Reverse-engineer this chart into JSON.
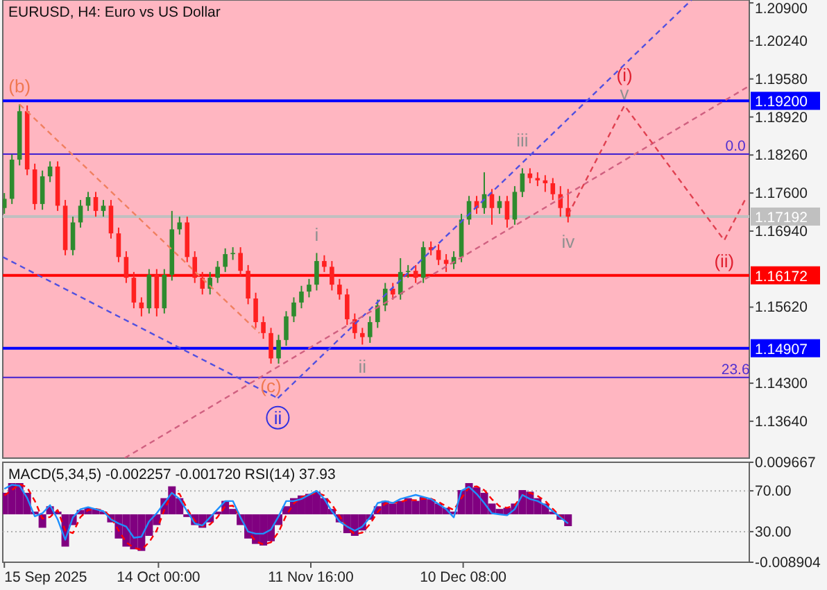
{
  "chart_data": [
    {
      "type": "candlestick",
      "title": "EURUSD, H4:  Euro vs US Dollar",
      "tick_labels": "y",
      "xlim": [
        "2025-09-14T17:00",
        "2026-02-02T04:00"
      ],
      "ylim": [
        1.13,
        1.2095
      ],
      "yticks": [
        {
          "value": 1.209,
          "label": "1.20900"
        },
        {
          "value": 1.2024,
          "label": "1.20240"
        },
        {
          "value": 1.1958,
          "label": "1.19580"
        },
        {
          "value": 1.1892,
          "label": "1.18920"
        },
        {
          "value": 1.1826,
          "label": "1.18260"
        },
        {
          "value": 1.176,
          "label": "1.17600"
        },
        {
          "value": 1.1694,
          "label": "1.16940"
        },
        {
          "value": 1.1562,
          "label": "1.15620"
        },
        {
          "value": 1.143,
          "label": "1.14300"
        },
        {
          "value": 1.1364,
          "label": "1.13640"
        }
      ],
      "x": [
        "2025-09-15T00:00",
        "2025-09-16T10:24",
        "2025-09-17T20:48",
        "2025-09-19T07:12",
        "2025-09-20T17:36",
        "2025-09-22T04:00",
        "2025-09-23T14:24",
        "2025-09-25T00:48",
        "2025-09-26T11:12",
        "2025-09-27T21:36",
        "2025-09-29T08:00",
        "2025-09-30T18:24",
        "2025-10-02T04:48",
        "2025-10-03T15:12",
        "2025-10-05T01:36",
        "2025-10-06T12:00",
        "2025-10-07T22:24",
        "2025-10-09T08:48",
        "2025-10-10T19:12",
        "2025-10-12T05:36",
        "2025-10-13T16:00",
        "2025-10-15T02:24",
        "2025-10-16T12:48",
        "2025-10-17T23:12",
        "2025-10-19T09:36",
        "2025-10-20T20:00",
        "2025-10-22T06:24",
        "2025-10-23T16:48",
        "2025-10-25T03:12",
        "2025-10-26T13:36",
        "2025-10-28T00:00",
        "2025-10-29T10:24",
        "2025-10-30T20:48",
        "2025-11-01T07:12",
        "2025-11-02T17:36",
        "2025-11-04T04:00",
        "2025-11-05T14:24",
        "2025-11-07T00:48",
        "2025-11-08T11:12",
        "2025-11-09T21:36",
        "2025-11-11T08:00",
        "2025-11-12T18:24",
        "2025-11-14T04:48",
        "2025-11-15T15:12",
        "2025-11-17T01:36",
        "2025-11-18T12:00",
        "2025-11-19T22:24",
        "2025-11-21T08:48",
        "2025-11-22T19:12",
        "2025-11-24T05:36",
        "2025-11-25T16:00",
        "2025-11-27T02:24",
        "2025-11-28T12:48",
        "2025-11-29T23:12",
        "2025-12-01T09:36",
        "2025-12-02T20:00",
        "2025-12-04T06:24",
        "2025-12-05T16:48",
        "2025-12-07T03:12",
        "2025-12-08T13:36",
        "2025-12-10T00:00",
        "2025-12-11T10:24",
        "2025-12-12T20:48",
        "2025-12-14T07:12",
        "2025-12-15T17:36",
        "2025-12-17T04:00",
        "2025-12-18T14:24",
        "2025-12-20T00:48",
        "2025-12-21T11:12",
        "2025-12-22T21:36",
        "2025-12-24T08:00",
        "2025-12-25T18:24",
        "2025-12-27T04:48",
        "2025-12-28T15:12",
        "2025-12-30T01:36"
      ],
      "ohlc": [
        [
          1.1734,
          1.176,
          1.1724,
          1.175
        ],
        [
          1.175,
          1.1827,
          1.1741,
          1.1818
        ],
        [
          1.1818,
          1.1914,
          1.1808,
          1.1902
        ],
        [
          1.1902,
          1.1912,
          1.1791,
          1.1801
        ],
        [
          1.1801,
          1.1811,
          1.1731,
          1.1741
        ],
        [
          1.1741,
          1.1799,
          1.1731,
          1.1789
        ],
        [
          1.1789,
          1.1815,
          1.1779,
          1.1806
        ],
        [
          1.1806,
          1.1815,
          1.1729,
          1.1738
        ],
        [
          1.1738,
          1.1748,
          1.1652,
          1.1661
        ],
        [
          1.1661,
          1.1719,
          1.1652,
          1.1709
        ],
        [
          1.1709,
          1.1748,
          1.17,
          1.1738
        ],
        [
          1.1738,
          1.1762,
          1.1729,
          1.1753
        ],
        [
          1.1753,
          1.1762,
          1.1719,
          1.1729
        ],
        [
          1.1729,
          1.1748,
          1.1719,
          1.1738
        ],
        [
          1.1738,
          1.1748,
          1.1681,
          1.169
        ],
        [
          1.169,
          1.17,
          1.164,
          1.1649
        ],
        [
          1.1649,
          1.1659,
          1.1604,
          1.1613
        ],
        [
          1.1613,
          1.1623,
          1.156,
          1.157
        ],
        [
          1.157,
          1.1579,
          1.1546,
          1.156
        ],
        [
          1.156,
          1.1628,
          1.1551,
          1.1618
        ],
        [
          1.1618,
          1.1628,
          1.1546,
          1.156
        ],
        [
          1.156,
          1.1628,
          1.1551,
          1.1618
        ],
        [
          1.1618,
          1.1729,
          1.1608,
          1.1697
        ],
        [
          1.1697,
          1.1719,
          1.1688,
          1.1709
        ],
        [
          1.1709,
          1.1719,
          1.164,
          1.1649
        ],
        [
          1.1649,
          1.1659,
          1.1604,
          1.1613
        ],
        [
          1.1613,
          1.1623,
          1.1584,
          1.1594
        ],
        [
          1.1594,
          1.1623,
          1.1584,
          1.1613
        ],
        [
          1.1613,
          1.1642,
          1.1604,
          1.1632
        ],
        [
          1.1632,
          1.1664,
          1.1623,
          1.1654
        ],
        [
          1.1654,
          1.1666,
          1.1644,
          1.1656
        ],
        [
          1.1656,
          1.1666,
          1.1616,
          1.1625
        ],
        [
          1.1625,
          1.1635,
          1.1567,
          1.1577
        ],
        [
          1.1577,
          1.1587,
          1.1526,
          1.1536
        ],
        [
          1.1536,
          1.1546,
          1.1507,
          1.1517
        ],
        [
          1.1517,
          1.1526,
          1.1464,
          1.1473
        ],
        [
          1.1473,
          1.1514,
          1.1464,
          1.1505
        ],
        [
          1.1505,
          1.1555,
          1.1495,
          1.1546
        ],
        [
          1.1546,
          1.1579,
          1.1536,
          1.157
        ],
        [
          1.157,
          1.1599,
          1.156,
          1.1589
        ],
        [
          1.1589,
          1.1611,
          1.1579,
          1.1601
        ],
        [
          1.1601,
          1.1656,
          1.1591,
          1.1642
        ],
        [
          1.1642,
          1.1652,
          1.1623,
          1.1632
        ],
        [
          1.1632,
          1.1642,
          1.1591,
          1.1601
        ],
        [
          1.1601,
          1.1611,
          1.1575,
          1.1584
        ],
        [
          1.1584,
          1.1594,
          1.1531,
          1.1541
        ],
        [
          1.1541,
          1.1551,
          1.1507,
          1.1517
        ],
        [
          1.1517,
          1.1526,
          1.1497,
          1.151
        ],
        [
          1.151,
          1.1546,
          1.15,
          1.1536
        ],
        [
          1.1536,
          1.1575,
          1.1526,
          1.1565
        ],
        [
          1.1565,
          1.1604,
          1.1555,
          1.1594
        ],
        [
          1.1594,
          1.1604,
          1.1575,
          1.1584
        ],
        [
          1.1584,
          1.1647,
          1.1575,
          1.1623
        ],
        [
          1.1623,
          1.1635,
          1.1613,
          1.1625
        ],
        [
          1.1625,
          1.1635,
          1.1604,
          1.1613
        ],
        [
          1.1613,
          1.1676,
          1.1604,
          1.1666
        ],
        [
          1.1666,
          1.1676,
          1.1652,
          1.1661
        ],
        [
          1.1661,
          1.1671,
          1.1635,
          1.1644
        ],
        [
          1.1644,
          1.1654,
          1.1623,
          1.1637
        ],
        [
          1.1637,
          1.1659,
          1.1628,
          1.1649
        ],
        [
          1.1649,
          1.1724,
          1.164,
          1.1714
        ],
        [
          1.1714,
          1.1755,
          1.1705,
          1.1746
        ],
        [
          1.1746,
          1.1755,
          1.1724,
          1.1734
        ],
        [
          1.1734,
          1.1796,
          1.1724,
          1.1758
        ],
        [
          1.1758,
          1.1767,
          1.1705,
          1.1734
        ],
        [
          1.1734,
          1.1755,
          1.1724,
          1.1746
        ],
        [
          1.1746,
          1.1755,
          1.17,
          1.1714
        ],
        [
          1.1714,
          1.1772,
          1.1705,
          1.1762
        ],
        [
          1.1762,
          1.1803,
          1.1753,
          1.1794
        ],
        [
          1.1794,
          1.1803,
          1.1777,
          1.1786
        ],
        [
          1.1786,
          1.1796,
          1.1772,
          1.1782
        ],
        [
          1.1782,
          1.1791,
          1.1762,
          1.1777
        ],
        [
          1.1777,
          1.1786,
          1.1748,
          1.1758
        ],
        [
          1.1758,
          1.1772,
          1.1719,
          1.1734
        ],
        [
          1.1734,
          1.1767,
          1.1709,
          1.1719
        ]
      ],
      "series": [
        {
          "type": "line",
          "x": [
            "2025-09-17T20:48",
            "2025-11-02T00:00"
          ],
          "values": [
            1.1914,
            1.1517
          ],
          "color": "#f08060",
          "line_style": "dashed"
        },
        {
          "type": "line",
          "x": [
            "2025-09-14T17:00",
            "2025-11-05T11:00"
          ],
          "values": [
            1.1649,
            1.1404
          ],
          "color": "#5050e0",
          "line_style": "dashed"
        },
        {
          "type": "line",
          "x": [
            "2025-11-05T11:00",
            "2026-01-22T07:00"
          ],
          "values": [
            1.1404,
            1.2095
          ],
          "color": "#5050e0",
          "line_style": "dashed"
        },
        {
          "type": "line",
          "x": [
            "2025-10-07T15:30",
            "2026-02-02T04:00"
          ],
          "values": [
            1.13,
            1.1946
          ],
          "color": "#d06080",
          "line_style": "dashed"
        },
        {
          "type": "line",
          "x": [
            "2025-12-30T01:36",
            "2026-01-09T16:12",
            "2026-01-28T10:48",
            "2026-02-01T11:06"
          ],
          "values": [
            1.1722,
            1.1912,
            1.1678,
            1.175
          ],
          "color": "#e04050",
          "line_style": "dashed"
        }
      ],
      "ref_lines": [
        {
          "axis": "y",
          "value": 1.192,
          "label": "1.19200",
          "color": "#0000ff"
        },
        {
          "axis": "y",
          "value": 1.18275,
          "color": "#4020d0"
        },
        {
          "axis": "y",
          "value": 1.17192,
          "label": "1.17192",
          "color": "#c0c0c0"
        },
        {
          "axis": "y",
          "value": 1.16172,
          "label": "1.16172",
          "color": "#ff0000"
        },
        {
          "axis": "y",
          "value": 1.14907,
          "label": "1.14907",
          "color": "#0000ff"
        },
        {
          "axis": "y",
          "value": 1.144,
          "color": "#4020d0"
        }
      ],
      "annotations": [
        {
          "text": "(b)",
          "x": "2025-09-17T20:48",
          "y": 1.1914
        },
        {
          "text": "(c)",
          "x": "2025-11-04T04:00",
          "y": 1.1464
        },
        {
          "text": "ii",
          "x": "2025-11-05T11:00",
          "y": 1.1404
        },
        {
          "text": "i",
          "x": "2025-11-12T18:24",
          "y": 1.1656
        },
        {
          "text": "ii",
          "x": "2025-11-21T08:48",
          "y": 1.1497
        },
        {
          "text": "iii",
          "x": "2025-12-21T11:12",
          "y": 1.1803
        },
        {
          "text": "iv",
          "x": "2025-12-30T01:36",
          "y": 1.1709
        },
        {
          "text": "v",
          "x": "2026-01-09T16:12",
          "y": 1.1912
        },
        {
          "text": "(i)",
          "x": "2026-01-09T16:12",
          "y": 1.1912
        },
        {
          "text": "(ii)",
          "x": "2026-01-28T10:48",
          "y": 1.1678
        },
        {
          "text": "0.0",
          "x": "2026-01-30T14:00",
          "y": 1.18275
        },
        {
          "text": "23.6",
          "x": "2026-01-30T14:00",
          "y": 1.144
        }
      ]
    },
    {
      "type": "bar",
      "title": "MACD(5,34,5) -0.002257 -0.001720 RSI(14) 37.93",
      "xlim": [
        "2025-09-14T17:00",
        "2026-02-02T04:00"
      ],
      "ylim": [
        -0.008904,
        0.009667
      ],
      "yticks": [
        0.009667,
        -0.008904
      ],
      "y2lim": [
        0,
        98
      ],
      "y2ticks": [
        {
          "value": 70,
          "label": "70.00"
        },
        {
          "value": 30,
          "label": "30.00"
        }
      ],
      "xticks": [
        {
          "value": "2025-09-15T00:00",
          "label": "15 Sep 2025"
        },
        {
          "value": "2025-10-14T00:00",
          "label": "14 Oct 00:00"
        },
        {
          "value": "2025-11-11T16:00",
          "label": "11 Nov 16:00"
        },
        {
          "value": "2025-12-10T08:00",
          "label": "10 Dec 08:00"
        }
      ],
      "x": [
        "2025-09-15T00:00",
        "2025-09-16T10:24",
        "2025-09-17T20:48",
        "2025-09-19T07:12",
        "2025-09-20T17:36",
        "2025-09-22T04:00",
        "2025-09-23T14:24",
        "2025-09-25T00:48",
        "2025-09-26T11:12",
        "2025-09-27T21:36",
        "2025-09-29T08:00",
        "2025-09-30T18:24",
        "2025-10-02T04:48",
        "2025-10-03T15:12",
        "2025-10-05T01:36",
        "2025-10-06T12:00",
        "2025-10-07T22:24",
        "2025-10-09T08:48",
        "2025-10-10T19:12",
        "2025-10-12T05:36",
        "2025-10-13T16:00",
        "2025-10-15T02:24",
        "2025-10-16T12:48",
        "2025-10-17T23:12",
        "2025-10-19T09:36",
        "2025-10-20T20:00",
        "2025-10-22T06:24",
        "2025-10-23T16:48",
        "2025-10-25T03:12",
        "2025-10-26T13:36",
        "2025-10-28T00:00",
        "2025-10-29T10:24",
        "2025-10-30T20:48",
        "2025-11-01T07:12",
        "2025-11-02T17:36",
        "2025-11-04T04:00",
        "2025-11-05T14:24",
        "2025-11-07T00:48",
        "2025-11-08T11:12",
        "2025-11-09T21:36",
        "2025-11-11T08:00",
        "2025-11-12T18:24",
        "2025-11-14T04:48",
        "2025-11-15T15:12",
        "2025-11-17T01:36",
        "2025-11-18T12:00",
        "2025-11-19T22:24",
        "2025-11-21T08:48",
        "2025-11-22T19:12",
        "2025-11-24T05:36",
        "2025-11-25T16:00",
        "2025-11-27T02:24",
        "2025-11-28T12:48",
        "2025-11-29T23:12",
        "2025-12-01T09:36",
        "2025-12-02T20:00",
        "2025-12-04T06:24",
        "2025-12-05T16:48",
        "2025-12-07T03:12",
        "2025-12-08T13:36",
        "2025-12-10T00:00",
        "2025-12-11T10:24",
        "2025-12-12T20:48",
        "2025-12-14T07:12",
        "2025-12-15T17:36",
        "2025-12-17T04:00",
        "2025-12-18T14:24",
        "2025-12-20T00:48",
        "2025-12-21T11:12",
        "2025-12-22T21:36",
        "2025-12-24T08:00",
        "2025-12-25T18:24",
        "2025-12-27T04:48",
        "2025-12-28T15:12",
        "2025-12-30T01:36"
      ],
      "ref_lines": [
        {
          "axis": "y2",
          "value": 70,
          "color": "#b0b0b0",
          "line_style": "dotted"
        },
        {
          "axis": "y2",
          "value": 30,
          "color": "#b0b0b0",
          "line_style": "dotted"
        }
      ],
      "series": [
        {
          "type": "bar",
          "color": "#800080",
          "values": [
            0.004,
            0.0058,
            0.0058,
            0.004,
            0.0005,
            -0.0025,
            0.0015,
            0.0005,
            -0.006,
            -0.002,
            0.0008,
            0.0012,
            0.001,
            0.0005,
            -0.0015,
            -0.0045,
            -0.006,
            -0.0065,
            -0.0068,
            -0.004,
            -0.002,
            0.003,
            0.0052,
            0.003,
            -0.0005,
            -0.002,
            -0.0025,
            -0.0015,
            0.0005,
            0.0025,
            0.001,
            -0.002,
            -0.0045,
            -0.0055,
            -0.0058,
            -0.005,
            -0.002,
            0.0015,
            0.003,
            0.0035,
            0.0038,
            0.0042,
            0.003,
            0.001,
            -0.0015,
            -0.0035,
            -0.004,
            -0.003,
            -0.001,
            0.0015,
            0.0025,
            0.002,
            0.0025,
            0.003,
            0.0025,
            0.0032,
            0.0028,
            0.002,
            0.0012,
            0.0005,
            0.0045,
            0.0058,
            0.005,
            0.004,
            0.002,
            0.001,
            0.0012,
            0.002,
            0.0045,
            0.0042,
            0.003,
            0.002,
            0.0005,
            -0.001,
            -0.0022
          ]
        },
        {
          "type": "line",
          "color": "#ff0000",
          "line_style": "dashed",
          "values": [
            0.0035,
            0.0045,
            0.0056,
            0.005,
            0.0025,
            -0.0008,
            -0.0005,
            0.0008,
            -0.003,
            -0.0035,
            -0.0005,
            0.0008,
            0.001,
            0.0007,
            -0.0005,
            -0.003,
            -0.0052,
            -0.0062,
            -0.0066,
            -0.0052,
            -0.003,
            0.0008,
            0.004,
            0.0038,
            0.001,
            -0.0012,
            -0.0022,
            -0.0019,
            -0.0005,
            0.0015,
            0.0016,
            -0.0005,
            -0.0032,
            -0.005,
            -0.0056,
            -0.0052,
            -0.0033,
            -0.0002,
            0.002,
            0.0032,
            0.0036,
            0.004,
            0.0035,
            0.0018,
            -0.0003,
            -0.0025,
            -0.0037,
            -0.0034,
            -0.0018,
            0.0004,
            0.002,
            0.0021,
            0.0023,
            0.0027,
            0.0026,
            0.0029,
            0.0029,
            0.0023,
            0.0015,
            0.0008,
            0.003,
            0.005,
            0.0052,
            0.0045,
            0.0028,
            0.0015,
            0.0012,
            0.0017,
            0.0035,
            0.004,
            0.0034,
            0.0025,
            0.001,
            -0.0004,
            -0.0017
          ]
        },
        {
          "type": "line",
          "axis": "y2",
          "color": "#1e90ff",
          "values": [
            72,
            76,
            75,
            63,
            45,
            48,
            56,
            42,
            22,
            44,
            52,
            54,
            52,
            50,
            42,
            38,
            35,
            24,
            25,
            40,
            48,
            58,
            68,
            62,
            50,
            38,
            36,
            44,
            52,
            60,
            60,
            44,
            30,
            28,
            28,
            32,
            45,
            60,
            60,
            62,
            66,
            70,
            62,
            50,
            40,
            35,
            31,
            35,
            44,
            58,
            60,
            58,
            62,
            64,
            66,
            64,
            62,
            57,
            52,
            44,
            70,
            74,
            67,
            58,
            48,
            47,
            46,
            52,
            66,
            62,
            60,
            56,
            50,
            44,
            38
          ]
        }
      ]
    }
  ]
}
